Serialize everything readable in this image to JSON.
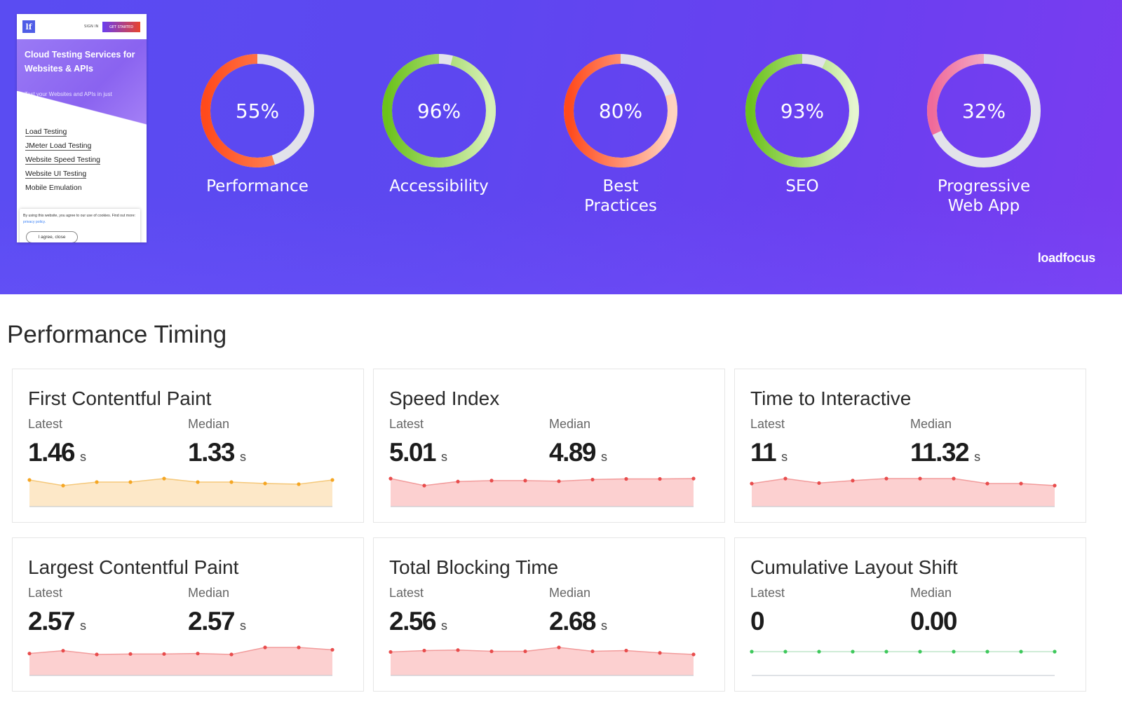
{
  "thumbnail": {
    "logo": "lf",
    "sign_in": "SIGN IN",
    "get_started": "GET STARTED",
    "title": "Cloud Testing Services for Websites & APIs",
    "subtitle": "Test your Websites and APIs in just minutes.",
    "links": [
      "Load Testing",
      "JMeter Load Testing",
      "Website Speed Testing",
      "Website UI Testing",
      "Mobile Emulation"
    ],
    "cookie_text": "By using this website, you agree to our use of cookies. Find out more:",
    "cookie_link": "privacy policy.",
    "cookie_button": "I agree, close"
  },
  "gauges": [
    {
      "label": "Performance",
      "value": 55,
      "display": "55%",
      "color_start": "#ff9a6b",
      "color_end": "#ff4a1c"
    },
    {
      "label": "Accessibility",
      "value": 96,
      "display": "96%",
      "color_start": "#d8f0b8",
      "color_end": "#6cc21c"
    },
    {
      "label": "Best\nPractices",
      "value": 80,
      "display": "80%",
      "color_start": "#ffd3c0",
      "color_end": "#ff4a1c"
    },
    {
      "label": "SEO",
      "value": 93,
      "display": "93%",
      "color_start": "#e6f6d0",
      "color_end": "#6cc21c"
    },
    {
      "label": "Progressive\nWeb App",
      "value": 32,
      "display": "32%",
      "color_start": "#f6e6ec",
      "color_end": "#f06a9a"
    }
  ],
  "brand": "loadfocus",
  "section_title": "Performance Timing",
  "labels": {
    "latest": "Latest",
    "median": "Median"
  },
  "metrics": [
    {
      "title": "First Contentful Paint",
      "latest": "1.46",
      "median": "1.33",
      "unit": "s",
      "fill": "#fde8c8",
      "dot": "#f5a623",
      "line": "#f5c87a",
      "series": [
        1.46,
        1.38,
        1.43,
        1.43,
        1.48,
        1.43,
        1.43,
        1.41,
        1.4,
        1.46
      ]
    },
    {
      "title": "Speed Index",
      "latest": "5.01",
      "median": "4.89",
      "unit": "s",
      "fill": "#fcd0d0",
      "dot": "#e84c4c",
      "line": "#f29b9b",
      "series": [
        5.01,
        4.8,
        4.92,
        4.95,
        4.95,
        4.93,
        4.98,
        5.0,
        5.0,
        5.01
      ]
    },
    {
      "title": "Time to Interactive",
      "latest": "11",
      "median": "11.32",
      "unit": "s",
      "fill": "#fcd0d0",
      "dot": "#e84c4c",
      "line": "#f29b9b",
      "series": [
        11.0,
        11.5,
        11.05,
        11.3,
        11.5,
        11.5,
        11.5,
        11.0,
        11.0,
        10.8
      ]
    },
    {
      "title": "Largest Contentful Paint",
      "latest": "2.57",
      "median": "2.57",
      "unit": "s",
      "fill": "#fcd0d0",
      "dot": "#e84c4c",
      "line": "#f29b9b",
      "series": [
        2.57,
        2.63,
        2.55,
        2.56,
        2.56,
        2.57,
        2.55,
        2.7,
        2.7,
        2.65
      ]
    },
    {
      "title": "Total Blocking Time",
      "latest": "2.56",
      "median": "2.68",
      "unit": "s",
      "fill": "#fcd0d0",
      "dot": "#e84c4c",
      "line": "#f29b9b",
      "series": [
        2.56,
        2.65,
        2.68,
        2.6,
        2.6,
        2.85,
        2.6,
        2.65,
        2.5,
        2.4
      ]
    },
    {
      "title": "Cumulative Layout Shift",
      "latest": "0",
      "median": "0.00",
      "unit": "",
      "fill": "#ffffff",
      "dot": "#3cc85a",
      "line": "#bfe6c8",
      "series": [
        0,
        0,
        0,
        0,
        0,
        0,
        0,
        0,
        0,
        0
      ]
    }
  ]
}
